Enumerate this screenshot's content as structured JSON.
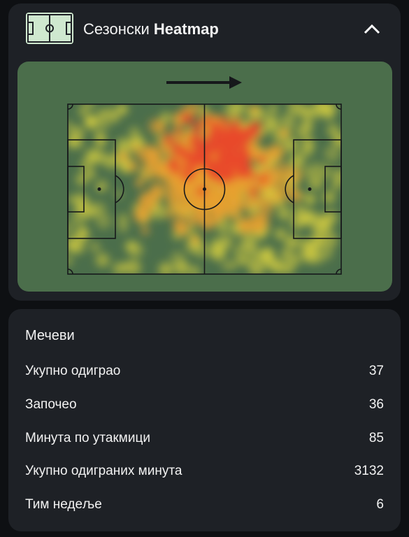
{
  "header": {
    "title_prefix": "Сезонски",
    "title_bold": "Heatmap"
  },
  "stats": {
    "title": "Мечеви",
    "rows": [
      {
        "label": "Укупно одиграо",
        "value": 37
      },
      {
        "label": "Започео",
        "value": 36
      },
      {
        "label": "Минута по утакмици",
        "value": 85
      },
      {
        "label": "Укупно одиграних минута",
        "value": 3132
      },
      {
        "label": "Тим недеље",
        "value": 6
      }
    ]
  }
}
